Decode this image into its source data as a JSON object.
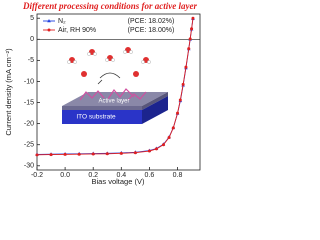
{
  "chart_data": {
    "type": "line",
    "title": "Different processing conditions for active layer",
    "x_label": "Bias voltage (V)",
    "y_label": "Current density (mA cm⁻²)",
    "x": [
      -0.2,
      -0.1,
      0.0,
      0.1,
      0.2,
      0.3,
      0.4,
      0.5,
      0.6,
      0.65,
      0.7,
      0.74,
      0.77,
      0.8,
      0.82,
      0.84,
      0.86,
      0.88,
      0.89,
      0.9,
      0.91
    ],
    "series": [
      {
        "name": "N₂",
        "note": "(PCE: 18.02%)",
        "color": "#2040e0",
        "marker": "triangle",
        "values": [
          -27.3,
          -27.25,
          -27.2,
          -27.15,
          -27.1,
          -27.05,
          -26.95,
          -26.8,
          -26.4,
          -25.9,
          -24.9,
          -23.2,
          -21.0,
          -17.6,
          -14.6,
          -10.9,
          -6.8,
          -2.3,
          0.0,
          2.4,
          4.9
        ]
      },
      {
        "name": "Air, RH 90%",
        "note": "(PCE: 18.00%)",
        "color": "#e02020",
        "marker": "circle",
        "values": [
          -27.4,
          -27.35,
          -27.3,
          -27.25,
          -27.2,
          -27.15,
          -27.05,
          -26.9,
          -26.5,
          -26.0,
          -25.0,
          -23.3,
          -21.0,
          -17.5,
          -14.4,
          -10.7,
          -6.6,
          -2.2,
          0.1,
          2.5,
          5.0
        ]
      }
    ],
    "xlim": [
      -0.2,
      0.96
    ],
    "xticks": [
      -0.2,
      {
        "value": 0.0,
        "label": "0.0"
      },
      0.2,
      0.4,
      0.6,
      0.8
    ],
    "ylim": [
      -31,
      6
    ],
    "yticks": [
      5,
      0,
      -5,
      -10,
      -15,
      -20,
      -25,
      -30
    ],
    "annotations": [
      "Active layer",
      "ITO substrate"
    ],
    "legend": "upper-left"
  }
}
